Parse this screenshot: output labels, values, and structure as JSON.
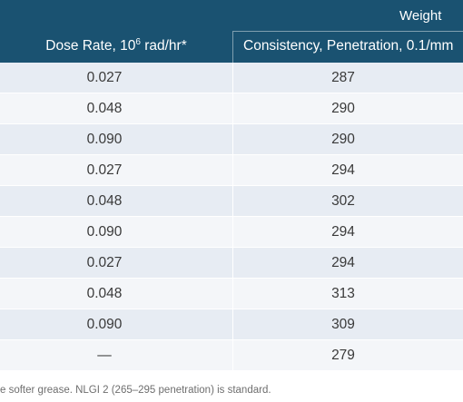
{
  "header": {
    "group_label": "Weight",
    "col_dose_rate_label": "Dose Rate, 10",
    "col_dose_rate_exp": "6",
    "col_dose_rate_unit": " rad/hr*",
    "col_consistency_label": "Consistency, Penetration, 0.1/mm"
  },
  "rows": [
    {
      "dose_rate": "0.027",
      "consistency": "287"
    },
    {
      "dose_rate": "0.048",
      "consistency": "290"
    },
    {
      "dose_rate": "0.090",
      "consistency": "290"
    },
    {
      "dose_rate": "0.027",
      "consistency": "294"
    },
    {
      "dose_rate": "0.048",
      "consistency": "302"
    },
    {
      "dose_rate": "0.090",
      "consistency": "294"
    },
    {
      "dose_rate": "0.027",
      "consistency": "294"
    },
    {
      "dose_rate": "0.048",
      "consistency": "313"
    },
    {
      "dose_rate": "0.090",
      "consistency": "309"
    },
    {
      "dose_rate": "—",
      "consistency": "279"
    }
  ],
  "footnote": "e softer grease. NLGI 2 (265–295 penetration) is standard.",
  "colors": {
    "header_bg": "#1a5271",
    "row_bg": "#e7ecf3",
    "row_alt_bg": "#f4f6f9",
    "text": "#3a3a3a"
  }
}
